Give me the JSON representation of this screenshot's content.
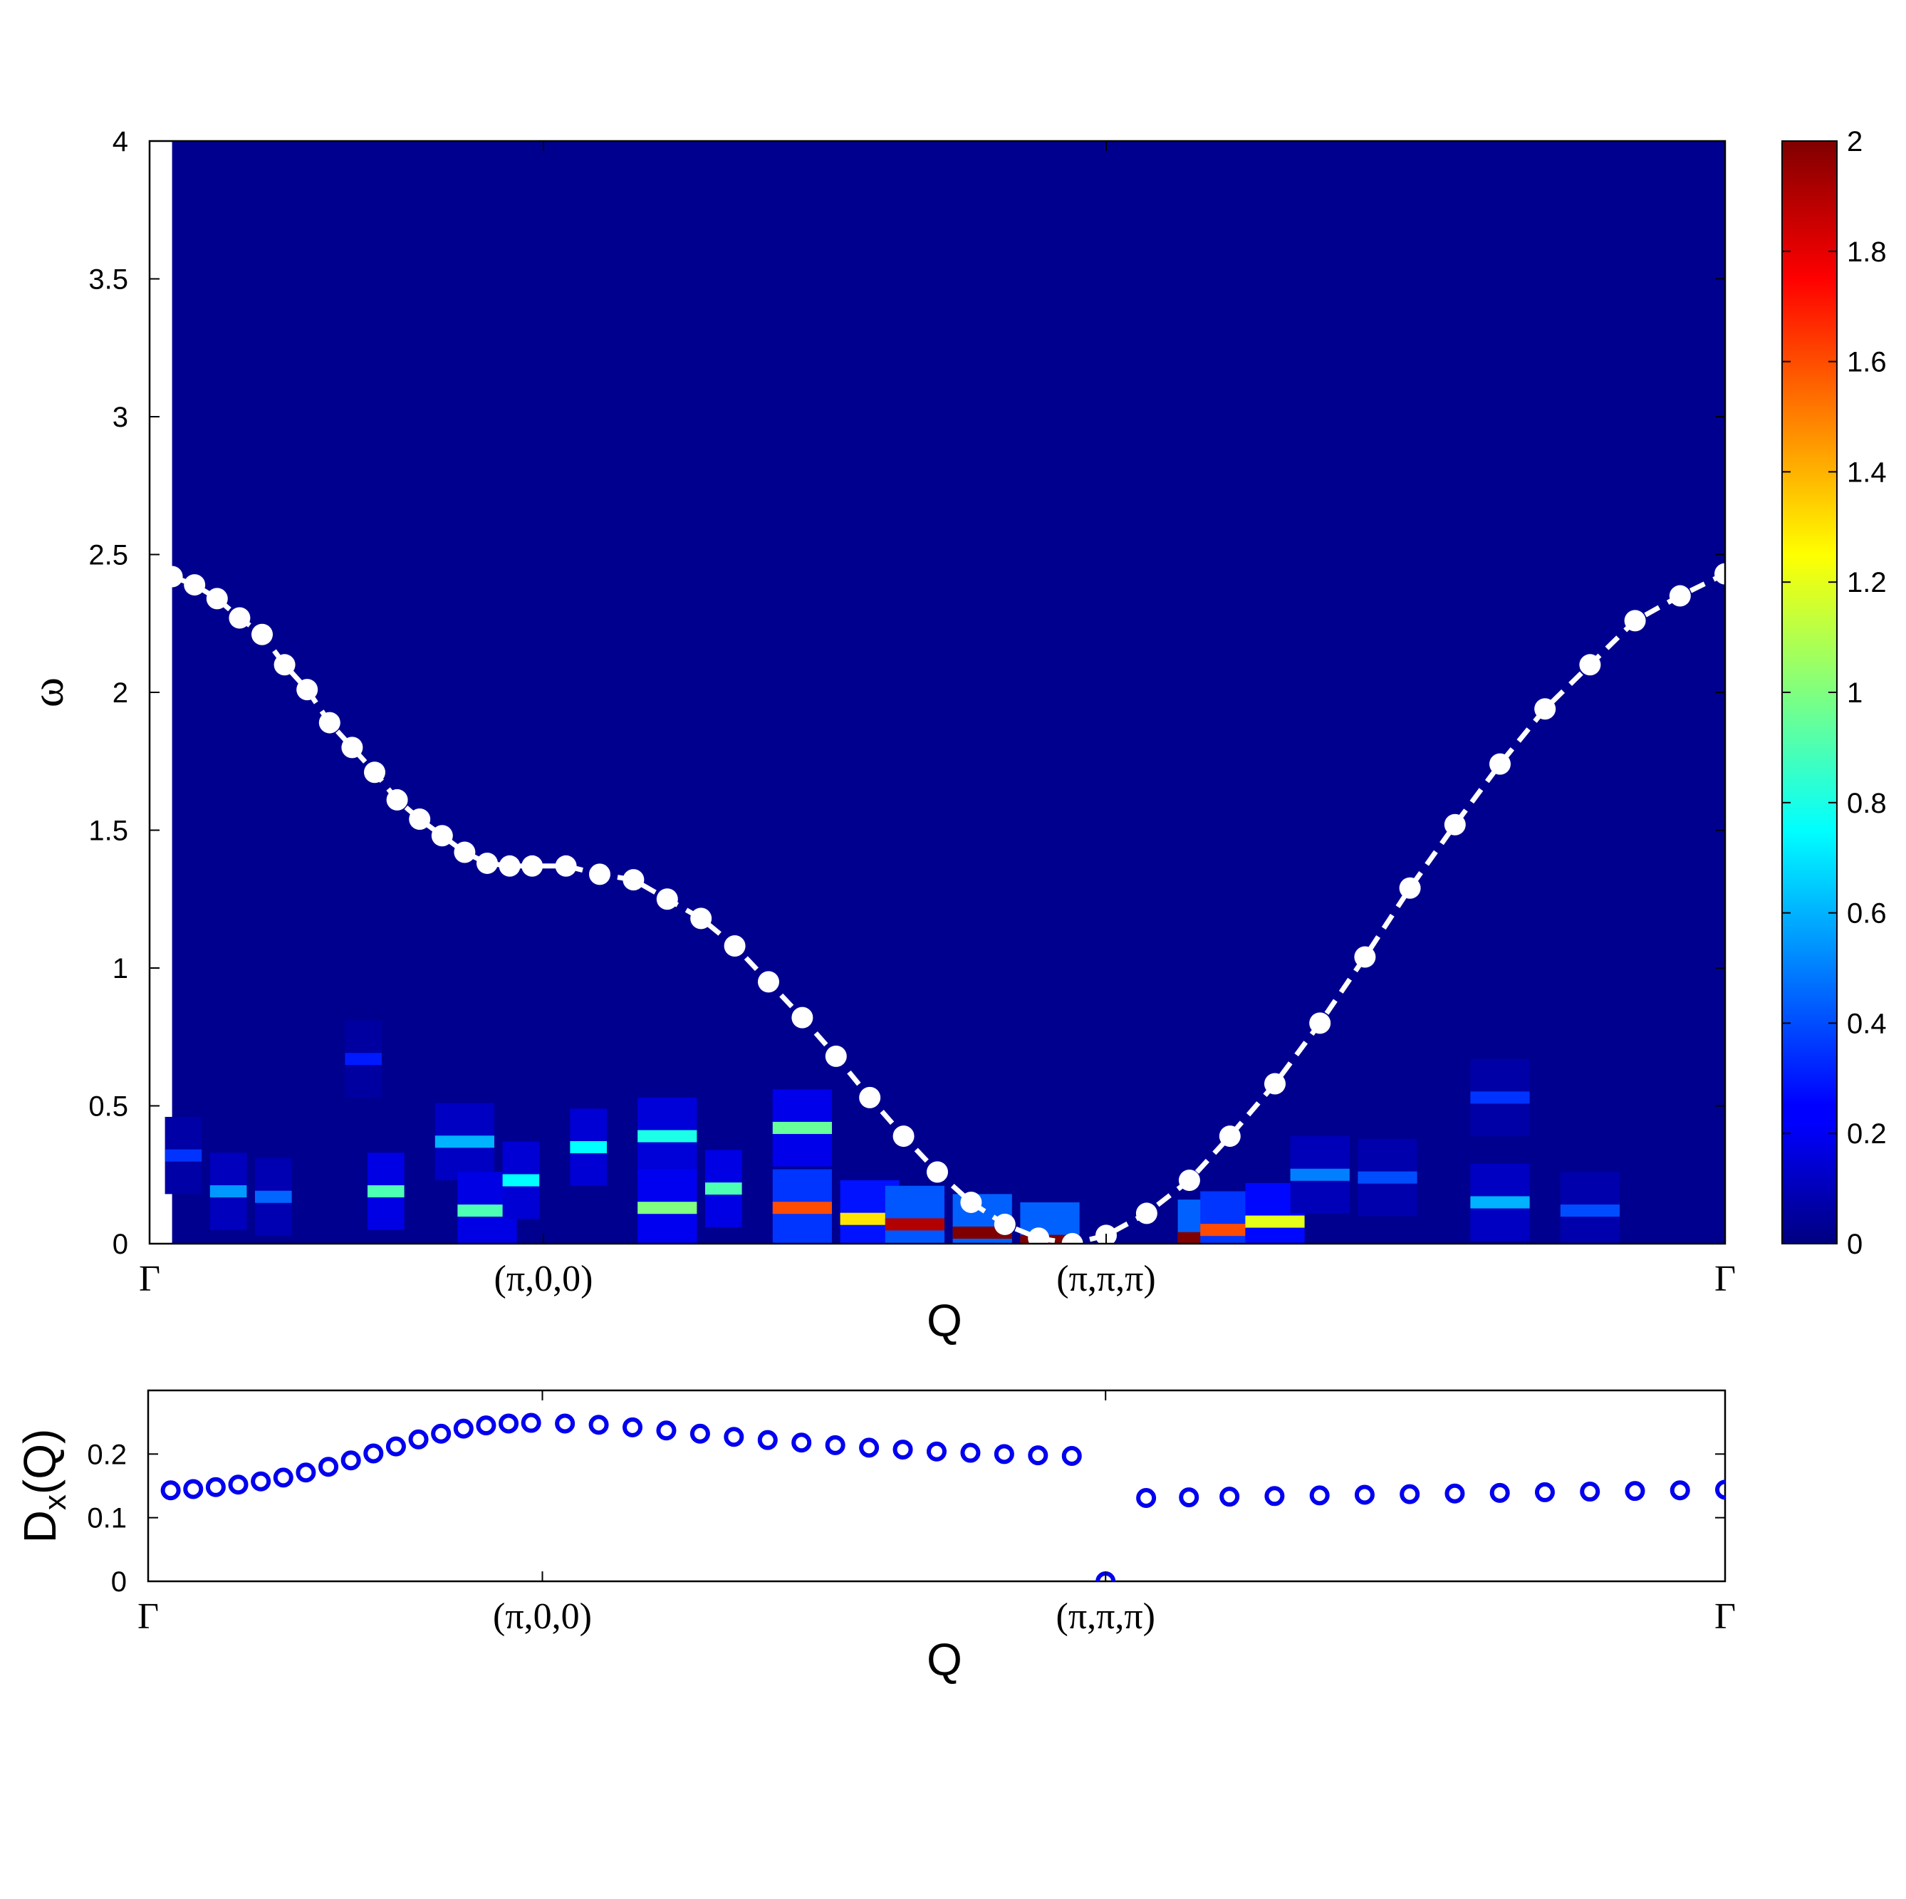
{
  "chart_data": [
    {
      "type": "heatmap",
      "title": "",
      "xlabel": "Q",
      "ylabel": "ω",
      "x_ticks": [
        "Γ",
        "(π,0,0)",
        "(π,π,π)",
        "Γ"
      ],
      "y_ticks": [
        "0",
        "0.5",
        "1",
        "1.5",
        "2",
        "2.5",
        "3",
        "3.5",
        "4"
      ],
      "ylim": [
        0,
        4
      ],
      "x_range": [
        0,
        70
      ],
      "x_tick_positions": [
        0,
        17.5,
        42.5,
        70
      ],
      "background_value": 0.03,
      "colorbar": {
        "range": [
          0,
          2
        ],
        "ticks": [
          "0",
          "0.2",
          "0.4",
          "0.6",
          "0.8",
          "1",
          "1.2",
          "1.4",
          "1.6",
          "1.8",
          "2"
        ],
        "colormap": "jet"
      },
      "intensity_features": [
        {
          "q_range": [
            1,
            2
          ],
          "omega": 0.32,
          "value": 0.35
        },
        {
          "q_range": [
            3,
            4
          ],
          "omega": 0.19,
          "value": 0.55
        },
        {
          "q_range": [
            5,
            6
          ],
          "omega": 0.17,
          "value": 0.45
        },
        {
          "q_range": [
            9,
            10
          ],
          "omega": 0.67,
          "value": 0.3
        },
        {
          "q_range": [
            10,
            11
          ],
          "omega": 0.19,
          "value": 0.9
        },
        {
          "q_range": [
            13,
            15
          ],
          "omega": 0.37,
          "value": 0.6
        },
        {
          "q_range": [
            14,
            16
          ],
          "omega": 0.12,
          "value": 0.9
        },
        {
          "q_range": [
            16,
            17
          ],
          "omega": 0.23,
          "value": 0.75
        },
        {
          "q_range": [
            19,
            20
          ],
          "omega": 0.35,
          "value": 0.75
        },
        {
          "q_range": [
            22,
            24
          ],
          "omega": 0.39,
          "value": 0.8
        },
        {
          "q_range": [
            22,
            24
          ],
          "omega": 0.13,
          "value": 1.0
        },
        {
          "q_range": [
            25,
            26
          ],
          "omega": 0.2,
          "value": 0.9
        },
        {
          "q_range": [
            28,
            30
          ],
          "omega": 0.42,
          "value": 0.95
        },
        {
          "q_range": [
            28,
            30
          ],
          "omega": 0.13,
          "value": 1.6
        },
        {
          "q_range": [
            31,
            33
          ],
          "omega": 0.09,
          "value": 1.3
        },
        {
          "q_range": [
            33,
            35
          ],
          "omega": 0.07,
          "value": 1.9
        },
        {
          "q_range": [
            36,
            38
          ],
          "omega": 0.04,
          "value": 2.0
        },
        {
          "q_range": [
            39,
            41
          ],
          "omega": 0.01,
          "value": 2.0
        },
        {
          "q_range": [
            46,
            47
          ],
          "omega": 0.02,
          "value": 2.0
        },
        {
          "q_range": [
            47,
            49
          ],
          "omega": 0.05,
          "value": 1.6
        },
        {
          "q_range": [
            49,
            51
          ],
          "omega": 0.08,
          "value": 1.2
        },
        {
          "q_range": [
            51,
            53
          ],
          "omega": 0.25,
          "value": 0.5
        },
        {
          "q_range": [
            54,
            56
          ],
          "omega": 0.24,
          "value": 0.4
        },
        {
          "q_range": [
            59,
            61
          ],
          "omega": 0.53,
          "value": 0.35
        },
        {
          "q_range": [
            59,
            61
          ],
          "omega": 0.15,
          "value": 0.6
        },
        {
          "q_range": [
            63,
            65
          ],
          "omega": 0.12,
          "value": 0.4
        }
      ],
      "series": [
        {
          "style": "white markers with dashed line",
          "x": [
            1,
            2,
            3,
            4,
            5,
            6,
            7,
            8,
            9,
            10,
            11,
            12,
            13,
            14,
            15,
            16,
            17,
            18.5,
            20,
            21.5,
            23,
            24.5,
            26,
            27.5,
            29,
            30.5,
            32,
            33.5,
            35,
            36.5,
            38,
            39.5,
            41,
            42.5,
            44.3,
            46.2,
            48,
            50,
            52,
            54,
            56,
            58,
            60,
            62,
            64,
            66,
            68,
            70
          ],
          "y": [
            2.42,
            2.39,
            2.34,
            2.27,
            2.21,
            2.1,
            2.01,
            1.89,
            1.8,
            1.71,
            1.61,
            1.54,
            1.48,
            1.42,
            1.38,
            1.37,
            1.37,
            1.37,
            1.34,
            1.32,
            1.25,
            1.18,
            1.08,
            0.95,
            0.82,
            0.68,
            0.53,
            0.39,
            0.26,
            0.15,
            0.07,
            0.02,
            0.0,
            0.03,
            0.11,
            0.23,
            0.39,
            0.58,
            0.8,
            1.04,
            1.29,
            1.52,
            1.74,
            1.94,
            2.1,
            2.26,
            2.35,
            2.43
          ]
        }
      ]
    },
    {
      "type": "scatter",
      "title": "",
      "xlabel": "Q",
      "ylabel": "D",
      "ylabel_sub": "x",
      "ylabel_suffix": "(Q)",
      "x_ticks": [
        "Γ",
        "(π,0,0)",
        "(π,π,π)",
        "Γ"
      ],
      "y_ticks": [
        "0",
        "0.1",
        "0.2"
      ],
      "ylim": [
        0,
        0.3
      ],
      "x_range": [
        0,
        70
      ],
      "x_tick_positions": [
        0,
        17.5,
        42.5,
        70
      ],
      "series": [
        {
          "style": "blue open circles",
          "x": [
            1,
            2,
            3,
            4,
            5,
            6,
            7,
            8,
            9,
            10,
            11,
            12,
            13,
            14,
            15,
            16,
            17,
            18.5,
            20,
            21.5,
            23,
            24.5,
            26,
            27.5,
            29,
            30.5,
            32,
            33.5,
            35,
            36.5,
            38,
            39.5,
            41,
            42.5,
            44.3,
            46.2,
            48,
            50,
            52,
            54,
            56,
            58,
            60,
            62,
            64,
            66,
            68,
            70
          ],
          "y": [
            0.143,
            0.145,
            0.148,
            0.152,
            0.157,
            0.163,
            0.171,
            0.18,
            0.19,
            0.201,
            0.212,
            0.223,
            0.232,
            0.24,
            0.245,
            0.248,
            0.249,
            0.248,
            0.246,
            0.242,
            0.237,
            0.232,
            0.227,
            0.222,
            0.218,
            0.214,
            0.21,
            0.207,
            0.204,
            0.202,
            0.2,
            0.198,
            0.197,
            0.0,
            0.131,
            0.132,
            0.133,
            0.134,
            0.135,
            0.136,
            0.137,
            0.138,
            0.139,
            0.14,
            0.141,
            0.142,
            0.143,
            0.144
          ]
        }
      ]
    }
  ]
}
